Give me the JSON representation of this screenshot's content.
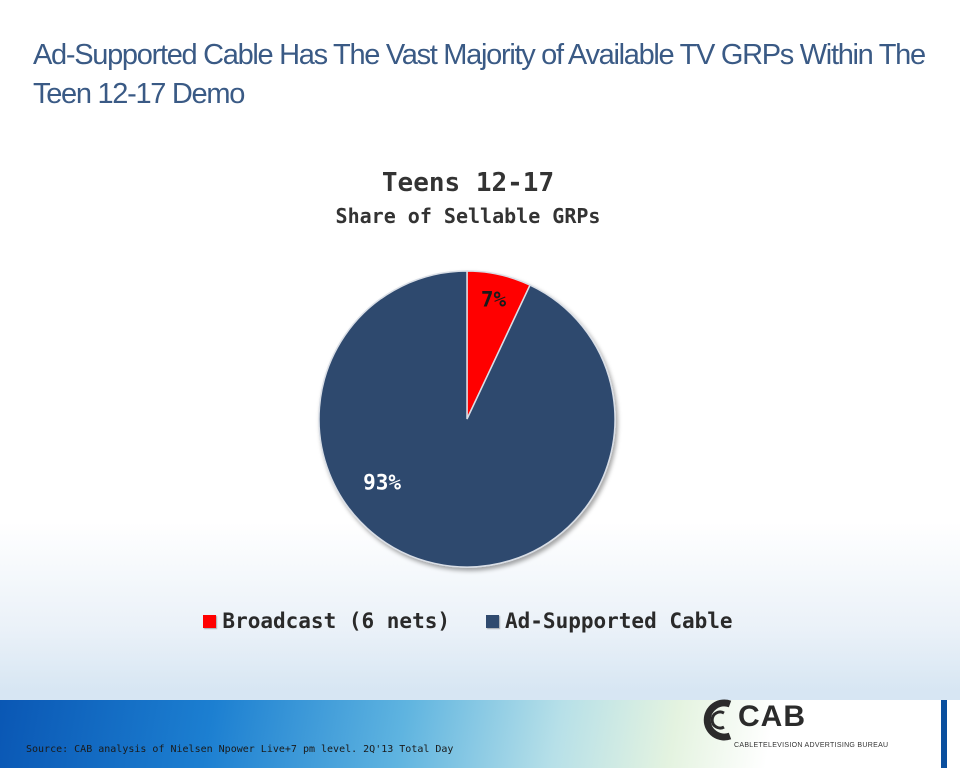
{
  "slide": {
    "title": "Ad-Supported Cable Has The Vast Majority of Available TV GRPs Within The Teen 12-17 Demo",
    "source": "Source: CAB analysis of Nielsen Npower Live+7 pm level. 2Q'13 Total Day"
  },
  "logo": {
    "wordmark": "CAB",
    "tagline": "CABLETELEVISION ADVERTISING BUREAU"
  },
  "chart_data": {
    "type": "pie",
    "title": "Teens 12-17",
    "subtitle": "Share of Sellable GRPs",
    "categories": [
      "Broadcast (6 nets)",
      "Ad-Supported Cable"
    ],
    "values": [
      7,
      93
    ],
    "data_labels": [
      "7%",
      "93%"
    ],
    "colors": [
      "#ff0000",
      "#2f4a6e"
    ],
    "legend_position": "bottom"
  }
}
